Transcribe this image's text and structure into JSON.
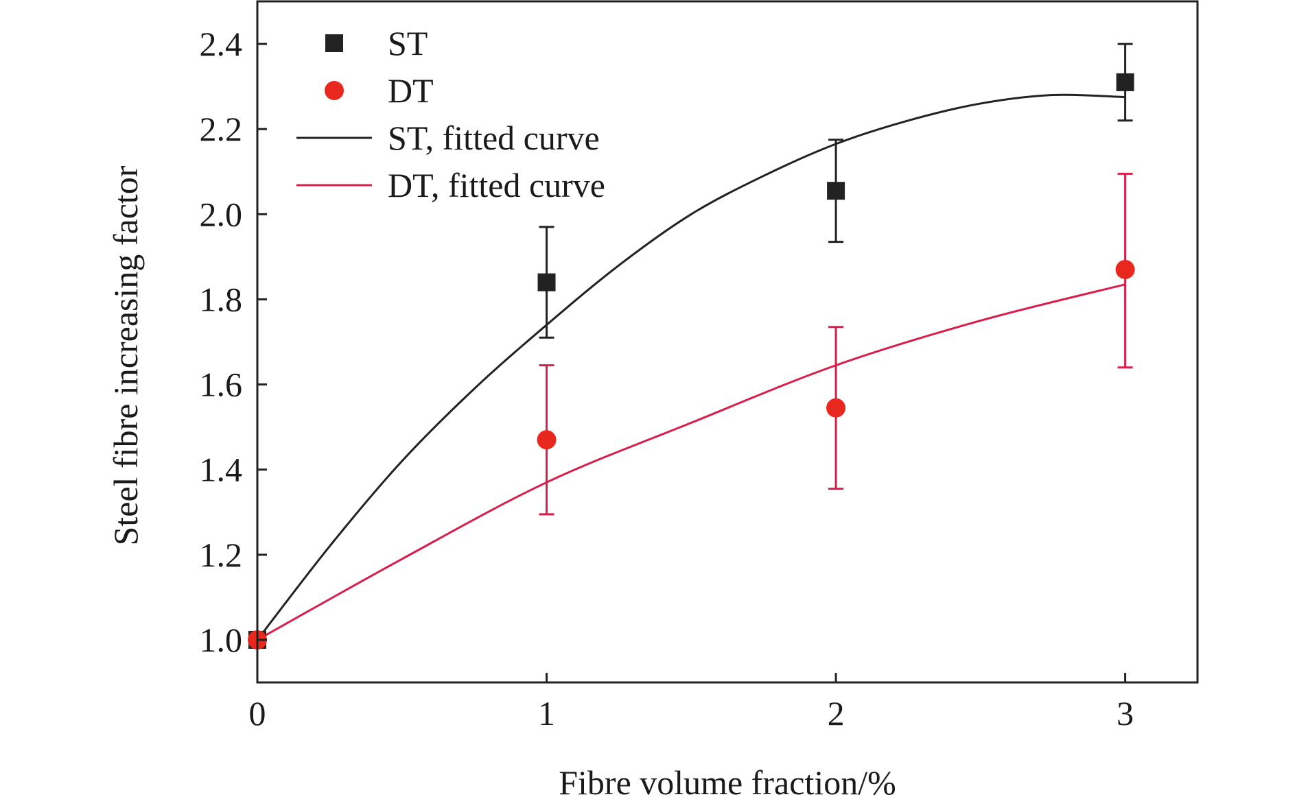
{
  "chart_data": {
    "type": "scatter",
    "xlabel": "Fibre volume fraction/%",
    "ylabel": "Steel fibre increasing factor",
    "xlim": [
      0,
      3.25
    ],
    "ylim": [
      0.9,
      2.5
    ],
    "x_ticks": [
      0,
      1,
      2,
      3
    ],
    "y_ticks": [
      1.0,
      1.2,
      1.4,
      1.6,
      1.8,
      2.0,
      2.2,
      2.4
    ],
    "x_tick_labels": [
      "0",
      "1",
      "2",
      "3"
    ],
    "y_tick_labels": [
      "1.0",
      "1.2",
      "1.4",
      "1.6",
      "1.8",
      "2.0",
      "2.2",
      "2.4"
    ],
    "grid": false,
    "legend_position": "top-left",
    "series": [
      {
        "name": "ST",
        "kind": "points",
        "marker": "square",
        "color": "#222222",
        "x": [
          0,
          1,
          2,
          3
        ],
        "y": [
          1.0,
          1.84,
          2.055,
          2.31
        ],
        "err_low": [
          null,
          1.71,
          1.935,
          2.22
        ],
        "err_high": [
          null,
          1.97,
          2.175,
          2.4
        ]
      },
      {
        "name": "DT",
        "kind": "points",
        "marker": "circle",
        "color": "#e8281e",
        "err_color": "#d81e4a",
        "x": [
          0,
          1,
          2,
          3
        ],
        "y": [
          1.0,
          1.47,
          1.545,
          1.87
        ],
        "err_low": [
          null,
          1.295,
          1.355,
          1.64
        ],
        "err_high": [
          null,
          1.645,
          1.735,
          2.095
        ]
      },
      {
        "name": "ST, fitted curve",
        "kind": "line",
        "color": "#222222",
        "x": [
          0,
          0.25,
          0.5,
          0.75,
          1.0,
          1.25,
          1.5,
          1.75,
          2.0,
          2.25,
          2.5,
          2.75,
          3.0
        ],
        "y": [
          1.0,
          1.22,
          1.42,
          1.59,
          1.74,
          1.88,
          2.0,
          2.09,
          2.165,
          2.22,
          2.26,
          2.28,
          2.275
        ]
      },
      {
        "name": "DT, fitted curve",
        "kind": "line",
        "color": "#d81e4a",
        "x": [
          0,
          0.5,
          1.0,
          1.5,
          2.0,
          2.5,
          3.0
        ],
        "y": [
          1.0,
          1.19,
          1.37,
          1.51,
          1.645,
          1.75,
          1.835
        ]
      }
    ]
  }
}
